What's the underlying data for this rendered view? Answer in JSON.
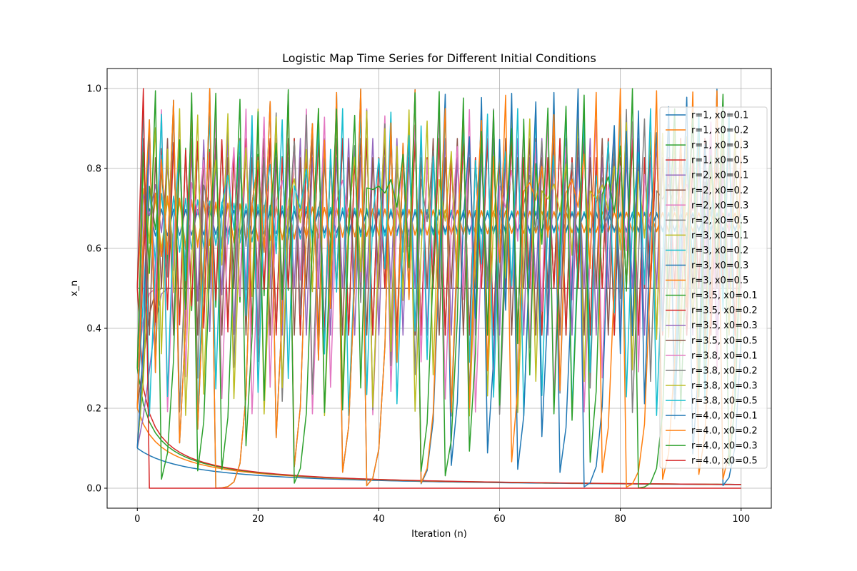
{
  "chart_data": {
    "type": "line",
    "title": "Logistic Map Time Series for Different Initial Conditions",
    "xlabel": "Iteration (n)",
    "ylabel": "x_n",
    "xlim": [
      -5,
      105
    ],
    "ylim": [
      -0.05,
      1.05
    ],
    "xticks": [
      0,
      20,
      40,
      60,
      80,
      100
    ],
    "xtick_labels": [
      "0",
      "20",
      "40",
      "60",
      "80",
      "100"
    ],
    "yticks": [
      0.0,
      0.2,
      0.4,
      0.6,
      0.8,
      1.0
    ],
    "ytick_labels": [
      "0.0",
      "0.2",
      "0.4",
      "0.6",
      "0.8",
      "1.0"
    ],
    "grid": true,
    "legend_position": "right",
    "n_iterations": 100,
    "series": [
      {
        "name": "r=1, x0=0.1",
        "r": 1,
        "x0": 0.1,
        "color": "#1f77b4"
      },
      {
        "name": "r=1, x0=0.2",
        "r": 1,
        "x0": 0.2,
        "color": "#ff7f0e"
      },
      {
        "name": "r=1, x0=0.3",
        "r": 1,
        "x0": 0.3,
        "color": "#2ca02c"
      },
      {
        "name": "r=1, x0=0.5",
        "r": 1,
        "x0": 0.5,
        "color": "#d62728"
      },
      {
        "name": "r=2, x0=0.1",
        "r": 2,
        "x0": 0.1,
        "color": "#9467bd"
      },
      {
        "name": "r=2, x0=0.2",
        "r": 2,
        "x0": 0.2,
        "color": "#8c564b"
      },
      {
        "name": "r=2, x0=0.3",
        "r": 2,
        "x0": 0.3,
        "color": "#e377c2"
      },
      {
        "name": "r=2, x0=0.5",
        "r": 2,
        "x0": 0.5,
        "color": "#7f7f7f"
      },
      {
        "name": "r=3, x0=0.1",
        "r": 3,
        "x0": 0.1,
        "color": "#bcbd22"
      },
      {
        "name": "r=3, x0=0.2",
        "r": 3,
        "x0": 0.2,
        "color": "#17becf"
      },
      {
        "name": "r=3, x0=0.3",
        "r": 3,
        "x0": 0.3,
        "color": "#1f77b4"
      },
      {
        "name": "r=3, x0=0.5",
        "r": 3,
        "x0": 0.5,
        "color": "#ff7f0e"
      },
      {
        "name": "r=3.5, x0=0.1",
        "r": 3.5,
        "x0": 0.1,
        "color": "#2ca02c"
      },
      {
        "name": "r=3.5, x0=0.2",
        "r": 3.5,
        "x0": 0.2,
        "color": "#d62728"
      },
      {
        "name": "r=3.5, x0=0.3",
        "r": 3.5,
        "x0": 0.3,
        "color": "#9467bd"
      },
      {
        "name": "r=3.5, x0=0.5",
        "r": 3.5,
        "x0": 0.5,
        "color": "#8c564b"
      },
      {
        "name": "r=3.8, x0=0.1",
        "r": 3.8,
        "x0": 0.1,
        "color": "#e377c2"
      },
      {
        "name": "r=3.8, x0=0.2",
        "r": 3.8,
        "x0": 0.2,
        "color": "#7f7f7f"
      },
      {
        "name": "r=3.8, x0=0.3",
        "r": 3.8,
        "x0": 0.3,
        "color": "#bcbd22"
      },
      {
        "name": "r=3.8, x0=0.5",
        "r": 3.8,
        "x0": 0.5,
        "color": "#17becf"
      },
      {
        "name": "r=4.0, x0=0.1",
        "r": 4.0,
        "x0": 0.1,
        "color": "#1f77b4"
      },
      {
        "name": "r=4.0, x0=0.2",
        "r": 4.0,
        "x0": 0.2,
        "color": "#ff7f0e"
      },
      {
        "name": "r=4.0, x0=0.3",
        "r": 4.0,
        "x0": 0.3,
        "color": "#2ca02c"
      },
      {
        "name": "r=4.0, x0=0.5",
        "r": 4.0,
        "x0": 0.5,
        "color": "#d62728"
      }
    ]
  }
}
